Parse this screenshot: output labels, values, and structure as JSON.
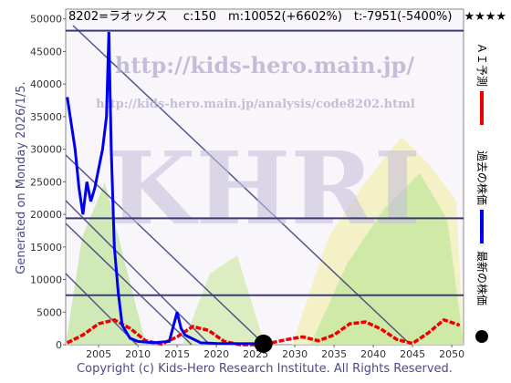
{
  "chart_data": {
    "type": "line",
    "title": "8202=ラオックス　 c:150　m:10052(+6602%)　t:-7951(-5400%)　★★★★",
    "side_note": "Generated on Monday 2026/1/5.",
    "footer": "Copyright (c) Kids-Hero Research Institute. All Rights Reserved.",
    "watermarks": [
      "http://kids-hero.main.jp/",
      "http://kids-hero.main.jp/analysis/code8202.html",
      "KHRI"
    ],
    "xlim": [
      2000.8,
      2051.5
    ],
    "ylim": [
      0,
      51500
    ],
    "xticks": [
      2005,
      2010,
      2015,
      2020,
      2025,
      2030,
      2035,
      2040,
      2045,
      2050
    ],
    "yticks": [
      0,
      5000,
      10000,
      15000,
      20000,
      25000,
      30000,
      35000,
      40000,
      45000,
      50000
    ],
    "levels": [
      48200,
      19400,
      7600
    ],
    "level_color": "#3a3a7a",
    "series": [
      {
        "name": "ＡＩ予測",
        "color": "#ee0000",
        "x": [
          2001,
          2003,
          2005,
          2007,
          2009,
          2011,
          2013,
          2015,
          2017,
          2019,
          2021,
          2023,
          2025,
          2027,
          2029,
          2031,
          2033,
          2035,
          2037,
          2039,
          2041,
          2043,
          2045,
          2047,
          2049,
          2051
        ],
        "values": [
          300,
          1500,
          3200,
          3800,
          2500,
          600,
          100,
          1200,
          2800,
          2200,
          500,
          0,
          0,
          300,
          800,
          1200,
          600,
          1500,
          3200,
          3500,
          2400,
          800,
          200,
          1800,
          3800,
          3000
        ]
      },
      {
        "name": "過去の株価",
        "color": "#0000ee",
        "x": [
          2001,
          2001.5,
          2002,
          2002.5,
          2003,
          2003.5,
          2004,
          2004.5,
          2005,
          2005.5,
          2006,
          2006.3,
          2006.6,
          2007,
          2007.5,
          2008,
          2009,
          2010,
          2012,
          2014,
          2015,
          2015.5,
          2016,
          2018,
          2020,
          2023,
          2025.9
        ],
        "values": [
          38000,
          34000,
          30000,
          24000,
          20000,
          25000,
          22000,
          24000,
          27000,
          30000,
          35000,
          48000,
          30000,
          15000,
          8000,
          3000,
          1000,
          500,
          300,
          500,
          5000,
          2500,
          1500,
          300,
          200,
          150,
          150
        ]
      },
      {
        "name": "最新の株価",
        "color": "#000000",
        "x": [
          2026
        ],
        "values": [
          150
        ]
      }
    ]
  }
}
